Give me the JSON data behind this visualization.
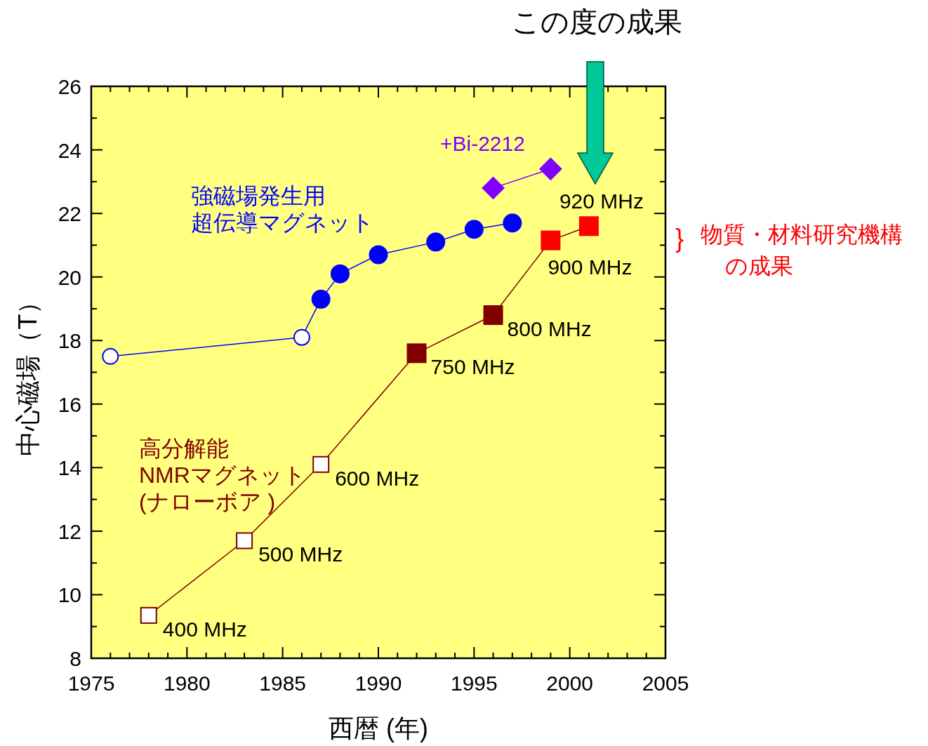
{
  "chart_data": {
    "type": "line",
    "xlabel": "西暦 (年)",
    "ylabel": "中心磁場（T）",
    "xlim": [
      1975,
      2005
    ],
    "xticks": [
      1975,
      1980,
      1985,
      1990,
      1995,
      2000,
      2005
    ],
    "ylim": [
      8,
      26
    ],
    "yticks": [
      8,
      10,
      12,
      14,
      16,
      18,
      20,
      22,
      24,
      26
    ],
    "grid": false,
    "line_style": "solid",
    "series": [
      {
        "name": "強磁場発生用超伝導マグネット",
        "color": "#0000ff",
        "marker": "circle",
        "x": [
          1976,
          1986,
          1987,
          1988,
          1990,
          1993,
          1995,
          1997
        ],
        "values": [
          17.5,
          18.1,
          19.3,
          20.1,
          20.7,
          21.1,
          21.5,
          21.7
        ],
        "colors": [
          "#ffffff",
          "#ffffff",
          "#0000ff",
          "#0000ff",
          "#0000ff",
          "#0000ff",
          "#0000ff",
          "#0000ff"
        ]
      },
      {
        "name": "+Bi-2212",
        "color": "#8000ff",
        "marker": "diamond",
        "x": [
          1996,
          1999
        ],
        "values": [
          22.8,
          23.4
        ],
        "colors": [
          "#8000ff",
          "#8000ff"
        ]
      },
      {
        "name": "高分解能NMRマグネット(ナローボア )",
        "color": "#800000",
        "marker": "square",
        "x": [
          1978,
          1983,
          1987,
          1992,
          1996,
          1999,
          2001
        ],
        "values": [
          9.35,
          11.7,
          14.1,
          17.6,
          18.8,
          21.15,
          21.6
        ],
        "colors": [
          "#ffffff",
          "#ffffff",
          "#ffffff",
          "#800000",
          "#800000",
          "#ff0000",
          "#ff0000"
        ]
      }
    ],
    "annotations": [
      "この度の成果",
      "}",
      "物質・材料研究機構",
      "の成果",
      {
        "text": "400 MHz",
        "x": 1978,
        "y": 9.35
      },
      {
        "text": "500 MHz",
        "x": 1983,
        "y": 11.7
      },
      {
        "text": "600 MHz",
        "x": 1987,
        "y": 14.1
      },
      {
        "text": "750 MHz",
        "x": 1992,
        "y": 17.6
      },
      {
        "text": "800 MHz",
        "x": 1996,
        "y": 18.8
      },
      {
        "text": "900 MHz",
        "x": 1999,
        "y": 21.15
      },
      {
        "text": "920 MHz",
        "x": 2001,
        "y": 21.6
      }
    ]
  }
}
